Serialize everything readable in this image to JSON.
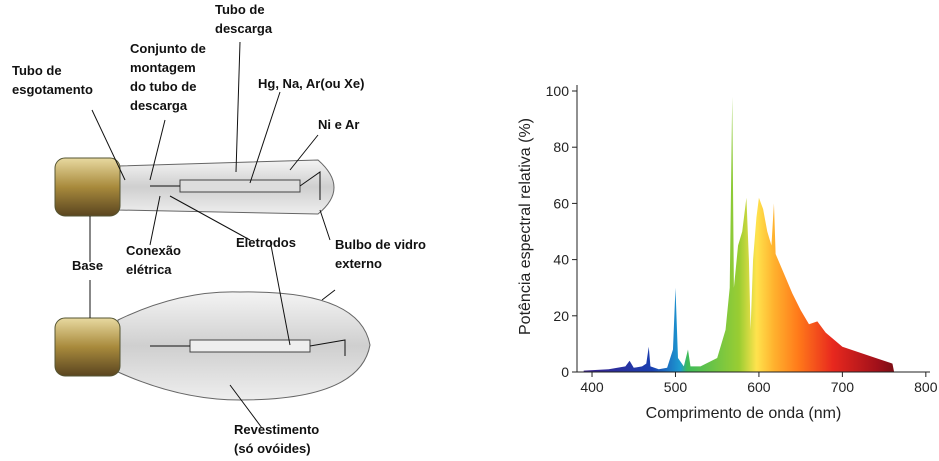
{
  "diagram": {
    "labels": [
      {
        "lines": [
          "Tubo de",
          "descarga"
        ]
      },
      {
        "lines": [
          "Conjunto de",
          "montagem",
          "do tubo de",
          "descarga"
        ]
      },
      {
        "lines": [
          "Tubo de",
          "esgotamento"
        ]
      },
      {
        "lines": [
          "Hg, Na, Ar(ou Xe)"
        ]
      },
      {
        "lines": [
          "Ni e Ar"
        ]
      },
      {
        "lines": [
          "Eletrodos"
        ]
      },
      {
        "lines": [
          "Conexão",
          "elétrica"
        ]
      },
      {
        "lines": [
          "Bulbo de vidro",
          "externo"
        ]
      },
      {
        "lines": [
          "Base"
        ]
      },
      {
        "lines": [
          "Revestimento",
          "(só ovóides)"
        ]
      }
    ]
  },
  "chart_data": {
    "type": "area",
    "xlabel": "Comprimento de onda (nm)",
    "ylabel": "Potência espectral relativa (%)",
    "x": [
      390,
      420,
      440,
      445,
      450,
      460,
      465,
      468,
      470,
      480,
      490,
      497,
      500,
      503,
      510,
      515,
      518,
      530,
      550,
      560,
      565,
      568,
      570,
      575,
      580,
      585,
      588,
      590,
      593,
      597,
      600,
      605,
      610,
      615,
      618,
      620,
      630,
      640,
      650,
      660,
      670,
      680,
      700,
      720,
      740,
      760,
      762
    ],
    "values": [
      0.5,
      1,
      2,
      4,
      1.5,
      2,
      3,
      9,
      2,
      1,
      1.5,
      8,
      30,
      5,
      2,
      8,
      2,
      2,
      5,
      15,
      30,
      98,
      30,
      45,
      50,
      62,
      40,
      15,
      40,
      55,
      62,
      58,
      50,
      45,
      60,
      42,
      35,
      28,
      22,
      17,
      18,
      14,
      9,
      7,
      5,
      3,
      0
    ],
    "xlim": [
      382,
      805
    ],
    "ylim": [
      0,
      100
    ],
    "xticks": [
      400,
      500,
      600,
      700,
      800
    ],
    "yticks": [
      0,
      20,
      40,
      60,
      80,
      100
    ]
  }
}
